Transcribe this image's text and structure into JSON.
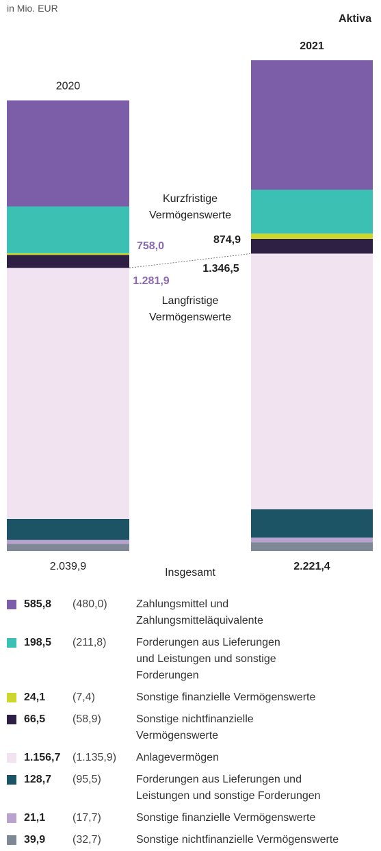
{
  "chart_data": {
    "type": "stacked_bar",
    "subtitle": "in Mio. EUR",
    "title": "Aktiva",
    "categories": [
      "2020",
      "2021"
    ],
    "ylim": [
      0,
      2221.4
    ],
    "series": [
      {
        "name": "Zahlungsmittel und\nZahlungsmitteläquivalente",
        "color": "#7b5ea7",
        "values": [
          480.0,
          585.8
        ],
        "value_labels": [
          "(480,0)",
          "585,8"
        ]
      },
      {
        "name": "Forderungen aus Lieferungen\nund Leistungen und sonstige\nForderungen",
        "color": "#3cc0b4",
        "values": [
          211.8,
          198.5
        ],
        "value_labels": [
          "(211,8)",
          "198,5"
        ]
      },
      {
        "name": "Sonstige finanzielle Vermögenswerte",
        "color": "#ccd62c",
        "values": [
          7.4,
          24.1
        ],
        "value_labels": [
          "(7,4)",
          "24,1"
        ]
      },
      {
        "name": "Sonstige nichtfinanzielle\nVermögenswerte",
        "color": "#2e1f45",
        "values": [
          58.9,
          66.5
        ],
        "value_labels": [
          "(58,9)",
          "66,5"
        ]
      },
      {
        "name": "Anlagevermögen",
        "color": "#f1e4f0",
        "values": [
          1135.9,
          1156.7
        ],
        "value_labels": [
          "(1.135,9)",
          "1.156,7"
        ]
      },
      {
        "name": "Forderungen aus Lieferungen und\nLeistungen und sonstige Forderungen",
        "color": "#1c5466",
        "values": [
          95.5,
          128.7
        ],
        "value_labels": [
          "(95,5)",
          "128,7"
        ]
      },
      {
        "name": "Sonstige finanzielle Vermögenswerte",
        "color": "#b9a2cd",
        "values": [
          17.7,
          21.1
        ],
        "value_labels": [
          "(17,7)",
          "21,1"
        ]
      },
      {
        "name": "Sonstige nichtfinanzielle Vermögenswerte",
        "color": "#7e8995",
        "values": [
          32.7,
          39.9
        ],
        "value_labels": [
          "(32,7)",
          "39,9"
        ]
      }
    ],
    "short_term_label": "Kurzfristige\nVermögenswerte",
    "short_term_totals": [
      758.0,
      874.9
    ],
    "short_term_total_labels": [
      "758,0",
      "874,9"
    ],
    "long_term_label": "Langfristige\nVermögenswerte",
    "long_term_totals": [
      1281.9,
      1346.5
    ],
    "long_term_total_labels": [
      "1.281,9",
      "1.346,5"
    ],
    "total_label": "Insgesamt",
    "totals": [
      2039.9,
      2221.4
    ],
    "total_labels": [
      "2.039,9",
      "2.221,4"
    ]
  }
}
